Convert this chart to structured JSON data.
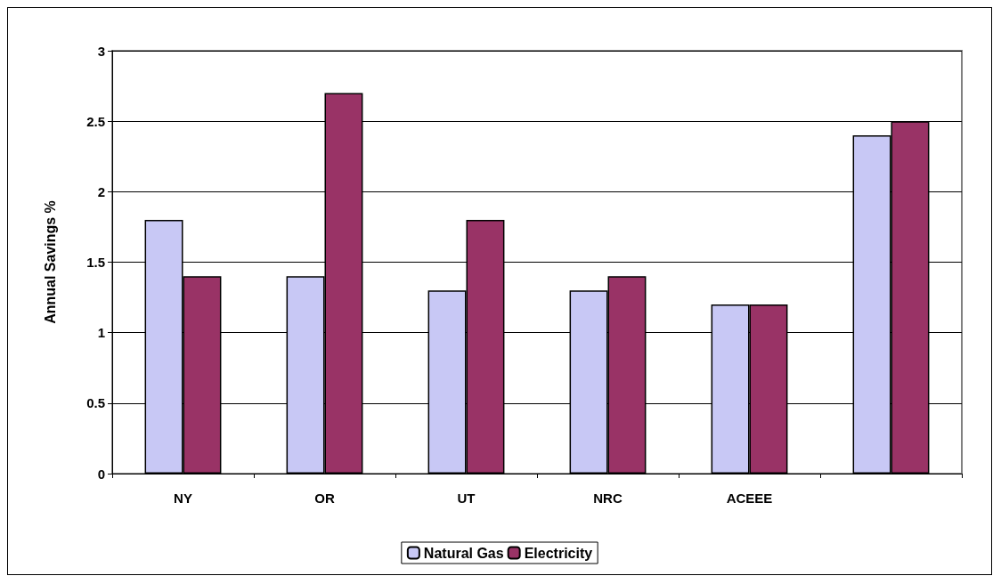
{
  "chart_data": {
    "type": "bar",
    "ylabel": "Annual Savings %",
    "categories": [
      "NY",
      "OR",
      "UT",
      "NRC",
      "ACEEE",
      null
    ],
    "series": [
      {
        "name": "Natural Gas",
        "color": "#c8c8f5",
        "values": [
          1.8,
          1.4,
          1.3,
          1.3,
          1.2,
          2.4
        ]
      },
      {
        "name": "Electricity",
        "color": "#993366",
        "values": [
          1.4,
          2.7,
          1.8,
          1.4,
          1.2,
          2.5
        ]
      }
    ],
    "ylim": [
      0,
      3
    ],
    "yticks": [
      0,
      0.5,
      1,
      1.5,
      2,
      2.5,
      3
    ],
    "grid": "y",
    "legend": "bottom"
  }
}
